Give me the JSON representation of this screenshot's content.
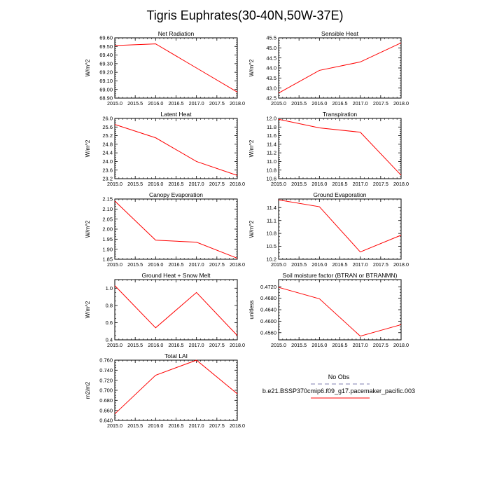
{
  "title": "Tigris Euphrates(30-40N,50W-37E)",
  "line_color": "#ff0000",
  "chart_data": [
    {
      "type": "line",
      "title": "Net Radiation",
      "xlabel": "",
      "ylabel": "W/m^2",
      "xlim": [
        2015.0,
        2018.0
      ],
      "ylim": [
        68.9,
        69.6
      ],
      "xticks": [
        "2015.0",
        "2015.5",
        "2016.0",
        "2016.5",
        "2017.0",
        "2017.5",
        "2018.0"
      ],
      "yticks": [
        "68.90",
        "69.00",
        "69.10",
        "69.20",
        "69.30",
        "69.40",
        "69.50",
        "69.60"
      ],
      "x": [
        2015.0,
        2016.0,
        2017.0,
        2018.0
      ],
      "y": [
        69.51,
        69.53,
        69.25,
        68.97
      ]
    },
    {
      "type": "line",
      "title": "Sensible Heat",
      "xlabel": "",
      "ylabel": "W/m^2",
      "xlim": [
        2015.0,
        2018.0
      ],
      "ylim": [
        42.5,
        45.5
      ],
      "xticks": [
        "2015.0",
        "2015.5",
        "2016.0",
        "2016.5",
        "2017.0",
        "2017.5",
        "2018.0"
      ],
      "yticks": [
        "42.5",
        "43.0",
        "43.5",
        "44.0",
        "44.5",
        "45.0",
        "45.5"
      ],
      "x": [
        2015.0,
        2016.0,
        2017.0,
        2018.0
      ],
      "y": [
        42.75,
        43.88,
        44.3,
        45.25
      ]
    },
    {
      "type": "line",
      "title": "Latent Heat",
      "xlabel": "",
      "ylabel": "W/m^2",
      "xlim": [
        2015.0,
        2018.0
      ],
      "ylim": [
        23.2,
        26.0
      ],
      "xticks": [
        "2015.0",
        "2015.5",
        "2016.0",
        "2016.5",
        "2017.0",
        "2017.5",
        "2018.0"
      ],
      "yticks": [
        "23.2",
        "23.6",
        "24.0",
        "24.4",
        "24.8",
        "25.2",
        "25.6",
        "26.0"
      ],
      "x": [
        2015.0,
        2016.0,
        2017.0,
        2018.0
      ],
      "y": [
        25.72,
        25.1,
        24.0,
        23.35
      ]
    },
    {
      "type": "line",
      "title": "Transpiration",
      "xlabel": "",
      "ylabel": "W/m^2",
      "xlim": [
        2015.0,
        2018.0
      ],
      "ylim": [
        10.6,
        12.0
      ],
      "xticks": [
        "2015.0",
        "2015.5",
        "2016.0",
        "2016.5",
        "2017.0",
        "2017.5",
        "2018.0"
      ],
      "yticks": [
        "10.6",
        "10.8",
        "11.0",
        "11.2",
        "11.4",
        "11.6",
        "11.8",
        "12.0"
      ],
      "x": [
        2015.0,
        2016.0,
        2017.0,
        2018.0
      ],
      "y": [
        11.98,
        11.78,
        11.68,
        10.68
      ]
    },
    {
      "type": "line",
      "title": "Canopy Evaporation",
      "xlabel": "",
      "ylabel": "W/m^2",
      "xlim": [
        2015.0,
        2018.0
      ],
      "ylim": [
        1.85,
        2.15
      ],
      "xticks": [
        "2015.0",
        "2015.5",
        "2016.0",
        "2016.5",
        "2017.0",
        "2017.5",
        "2018.0"
      ],
      "yticks": [
        "1.85",
        "1.90",
        "1.95",
        "2.00",
        "2.05",
        "2.10",
        "2.15"
      ],
      "x": [
        2015.0,
        2016.0,
        2017.0,
        2018.0
      ],
      "y": [
        2.14,
        1.945,
        1.935,
        1.855
      ]
    },
    {
      "type": "line",
      "title": "Ground Evaporation",
      "xlabel": "",
      "ylabel": "W/m^2",
      "xlim": [
        2015.0,
        2018.0
      ],
      "ylim": [
        10.2,
        11.6
      ],
      "xticks": [
        "2015.0",
        "2015.5",
        "2016.0",
        "2016.5",
        "2017.0",
        "2017.5",
        "2018.0"
      ],
      "yticks": [
        "10.2",
        "10.5",
        "10.8",
        "11.1",
        "11.4"
      ],
      "x": [
        2015.0,
        2016.0,
        2017.0,
        2018.0
      ],
      "y": [
        11.58,
        11.42,
        10.37,
        10.76
      ]
    },
    {
      "type": "line",
      "title": "Ground Heat + Snow Melt",
      "xlabel": "",
      "ylabel": "W/m^2",
      "xlim": [
        2015.0,
        2018.0
      ],
      "ylim": [
        0.4,
        1.1
      ],
      "xticks": [
        "2015.0",
        "2015.5",
        "2016.0",
        "2016.5",
        "2017.0",
        "2017.5",
        "2018.0"
      ],
      "yticks": [
        "0.4",
        "0.6",
        "0.8",
        "1.0"
      ],
      "x": [
        2015.0,
        2016.0,
        2017.0,
        2018.0
      ],
      "y": [
        1.03,
        0.54,
        0.95,
        0.45
      ]
    },
    {
      "type": "line",
      "title": "Soil moisture factor (BTRAN or BTRANMN)",
      "xlabel": "",
      "ylabel": "unitless",
      "xlim": [
        2015.0,
        2018.0
      ],
      "ylim": [
        0.4535,
        0.4745
      ],
      "xticks": [
        "2015.0",
        "2015.5",
        "2016.0",
        "2016.5",
        "2017.0",
        "2017.5",
        "2018.0"
      ],
      "yticks": [
        "0.4560",
        "0.4600",
        "0.4640",
        "0.4680",
        "0.4720"
      ],
      "x": [
        2015.0,
        2016.0,
        2017.0,
        2018.0
      ],
      "y": [
        0.4718,
        0.4678,
        0.4548,
        0.4588
      ]
    },
    {
      "type": "line",
      "title": "Total LAI",
      "xlabel": "",
      "ylabel": "m2/m2",
      "xlim": [
        2015.0,
        2018.0
      ],
      "ylim": [
        0.64,
        0.76
      ],
      "xticks": [
        "2015.0",
        "2015.5",
        "2016.0",
        "2016.5",
        "2017.0",
        "2017.5",
        "2018.0"
      ],
      "yticks": [
        "0.640",
        "0.660",
        "0.680",
        "0.700",
        "0.720",
        "0.740",
        "0.760"
      ],
      "x": [
        2015.0,
        2016.0,
        2017.0,
        2018.0
      ],
      "y": [
        0.653,
        0.73,
        0.76,
        0.693
      ]
    }
  ],
  "legend": {
    "entries": [
      {
        "label": "No Obs",
        "color": "#aaaacc",
        "style": "dashed"
      },
      {
        "label": "b.e21.BSSP370cmip6.f09_g17.pacemaker_pacific.003",
        "color": "#ff0000",
        "style": "solid"
      }
    ]
  }
}
